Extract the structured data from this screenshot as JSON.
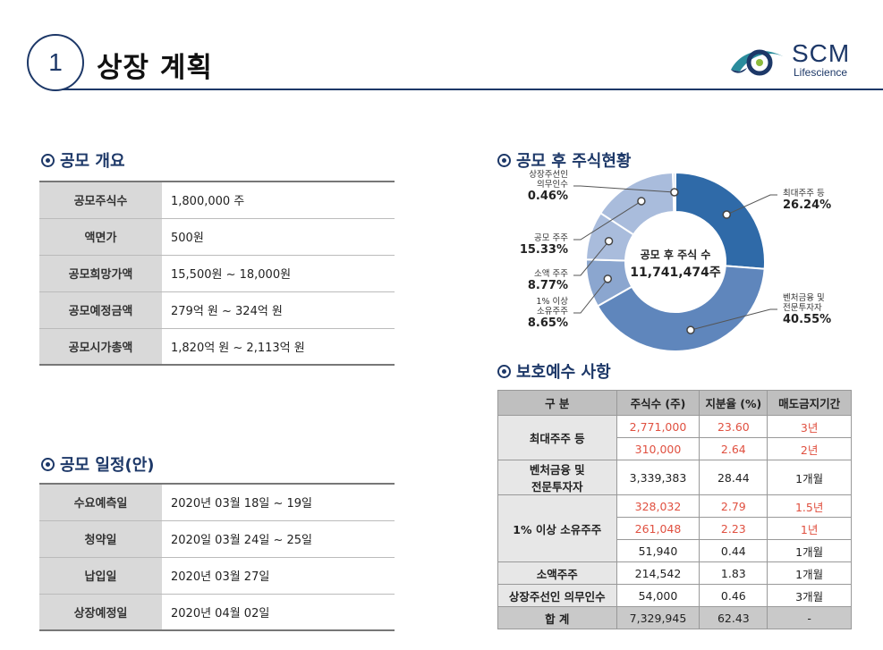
{
  "header": {
    "number": "1",
    "title": "상장 계획",
    "logo_name": "SCM",
    "logo_sub": "Lifescience"
  },
  "colors": {
    "navy": "#1d3868",
    "donut_dark": "#2f6aa8",
    "donut_mid": "#5f86bc",
    "donut_light": "#8ba6cf",
    "donut_lighter": "#a9bcdc",
    "donut_lightest": "#cdd8ea",
    "red": "#e05040"
  },
  "ipo_overview": {
    "heading": "공모 개요",
    "rows": [
      {
        "label": "공모주식수",
        "value": "1,800,000 주"
      },
      {
        "label": "액면가",
        "value": "500원"
      },
      {
        "label": "공모희망가액",
        "value": "15,500원 ~ 18,000원"
      },
      {
        "label": "공모예정금액",
        "value": "279억 원 ~ 324억 원"
      },
      {
        "label": "공모시가총액",
        "value": "1,820억 원 ~ 2,113억 원"
      }
    ]
  },
  "ipo_schedule": {
    "heading": "공모 일정(안)",
    "rows": [
      {
        "label": "수요예측일",
        "value": "2020년 03월 18일 ~ 19일"
      },
      {
        "label": "청약일",
        "value": "2020일 03월 24일 ~ 25일"
      },
      {
        "label": "납입일",
        "value": "2020년 03월 27일"
      },
      {
        "label": "상장예정일",
        "value": "2020년 04월 02일"
      }
    ]
  },
  "shareholding": {
    "heading": "공모 후 주식현황",
    "center_label": "공모 후 주식 수",
    "center_value": "11,741,474주",
    "chart_data": {
      "type": "pie",
      "categories": [
        "최대주주 등",
        "벤처금융 및 전문투자자",
        "1% 이상 소유주주",
        "소액 주주",
        "공모 주주",
        "상장주선인 의무인수"
      ],
      "values": [
        26.24,
        40.55,
        8.65,
        8.77,
        15.33,
        0.46
      ],
      "labels": [
        {
          "lines": [
            "최대주주 등"
          ],
          "pct": "26.24%"
        },
        {
          "lines": [
            "벤처금융 및",
            "전문투자자"
          ],
          "pct": "40.55%"
        },
        {
          "lines": [
            "1% 이상",
            "소유주주"
          ],
          "pct": "8.65%"
        },
        {
          "lines": [
            "소액 주주"
          ],
          "pct": "8.77%"
        },
        {
          "lines": [
            "공모 주주"
          ],
          "pct": "15.33%"
        },
        {
          "lines": [
            "상장주선인",
            "의무인수"
          ],
          "pct": "0.46%"
        }
      ]
    }
  },
  "protection": {
    "heading": "보호예수 사항",
    "columns": [
      "구 분",
      "주식수 (주)",
      "지분율 (%)",
      "매도금지기간"
    ],
    "groups": [
      {
        "label": "최대주주 등",
        "rows": [
          {
            "shares": "2,771,000",
            "ratio": "23.60",
            "period": "3년",
            "red": true
          },
          {
            "shares": "310,000",
            "ratio": "2.64",
            "period": "2년",
            "red": true
          }
        ]
      },
      {
        "label": "벤처금융 및\n전문투자자",
        "rows": [
          {
            "shares": "3,339,383",
            "ratio": "28.44",
            "period": "1개월",
            "red": false
          }
        ]
      },
      {
        "label": "1% 이상 소유주주",
        "rows": [
          {
            "shares": "328,032",
            "ratio": "2.79",
            "period": "1.5년",
            "red": true
          },
          {
            "shares": "261,048",
            "ratio": "2.23",
            "period": "1년",
            "red": true
          },
          {
            "shares": "51,940",
            "ratio": "0.44",
            "period": "1개월",
            "red": false
          }
        ]
      },
      {
        "label": "소액주주",
        "rows": [
          {
            "shares": "214,542",
            "ratio": "1.83",
            "period": "1개월",
            "red": false
          }
        ]
      },
      {
        "label": "상장주선인 의무인수",
        "rows": [
          {
            "shares": "54,000",
            "ratio": "0.46",
            "period": "3개월",
            "red": false
          }
        ]
      }
    ],
    "total": {
      "label": "합 계",
      "shares": "7,329,945",
      "ratio": "62.43",
      "period": "-"
    }
  }
}
